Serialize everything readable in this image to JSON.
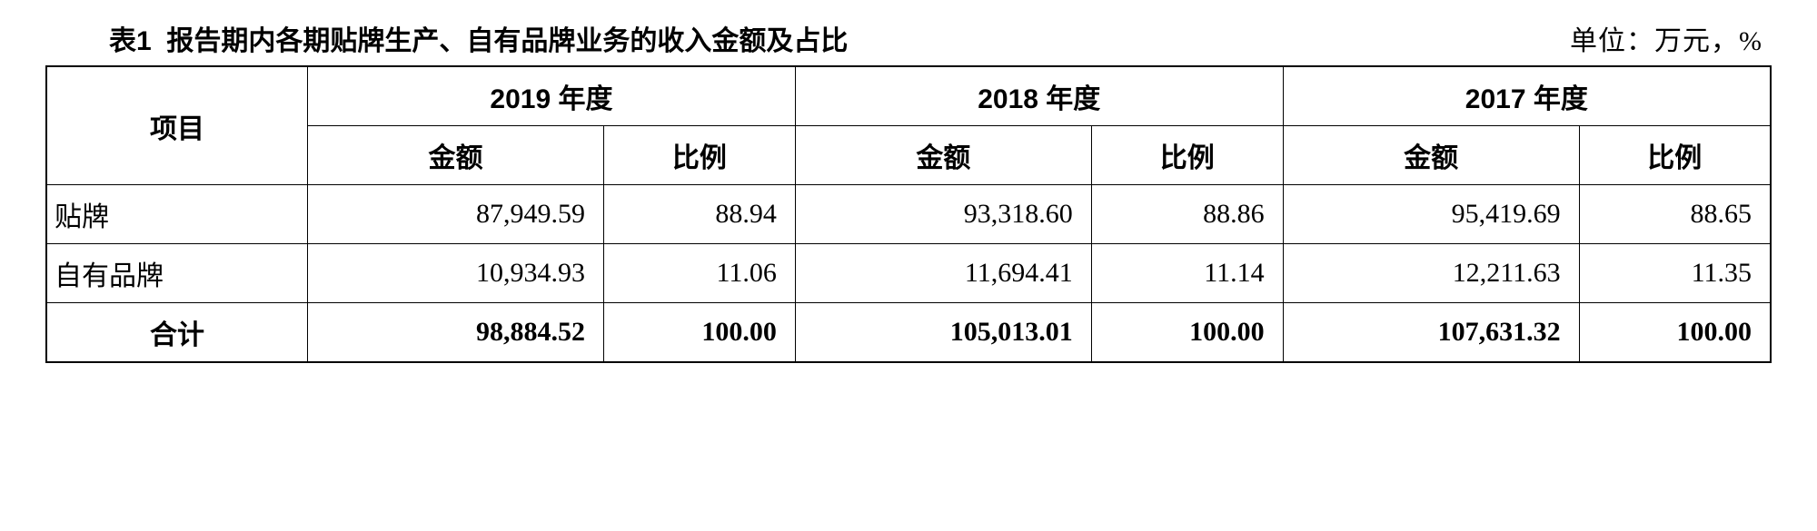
{
  "header": {
    "title_prefix": "表1",
    "title": "报告期内各期贴牌生产、自有品牌业务的收入金额及占比",
    "unit": "单位：万元，%"
  },
  "table": {
    "columns": {
      "item": "项目",
      "years": [
        "2019 年度",
        "2018 年度",
        "2017 年度"
      ],
      "sub": {
        "amount": "金额",
        "ratio": "比例"
      }
    },
    "rows": [
      {
        "label": "贴牌",
        "y2019": {
          "amount": "87,949.59",
          "ratio": "88.94"
        },
        "y2018": {
          "amount": "93,318.60",
          "ratio": "88.86"
        },
        "y2017": {
          "amount": "95,419.69",
          "ratio": "88.65"
        }
      },
      {
        "label": "自有品牌",
        "y2019": {
          "amount": "10,934.93",
          "ratio": "11.06"
        },
        "y2018": {
          "amount": "11,694.41",
          "ratio": "11.14"
        },
        "y2017": {
          "amount": "12,211.63",
          "ratio": "11.35"
        }
      }
    ],
    "total": {
      "label": "合计",
      "y2019": {
        "amount": "98,884.52",
        "ratio": "100.00"
      },
      "y2018": {
        "amount": "105,013.01",
        "ratio": "100.00"
      },
      "y2017": {
        "amount": "107,631.32",
        "ratio": "100.00"
      }
    }
  },
  "style": {
    "border_color": "#000000",
    "background_color": "#ffffff",
    "text_color": "#000000",
    "title_fontsize": 30,
    "cell_fontsize": 30
  }
}
